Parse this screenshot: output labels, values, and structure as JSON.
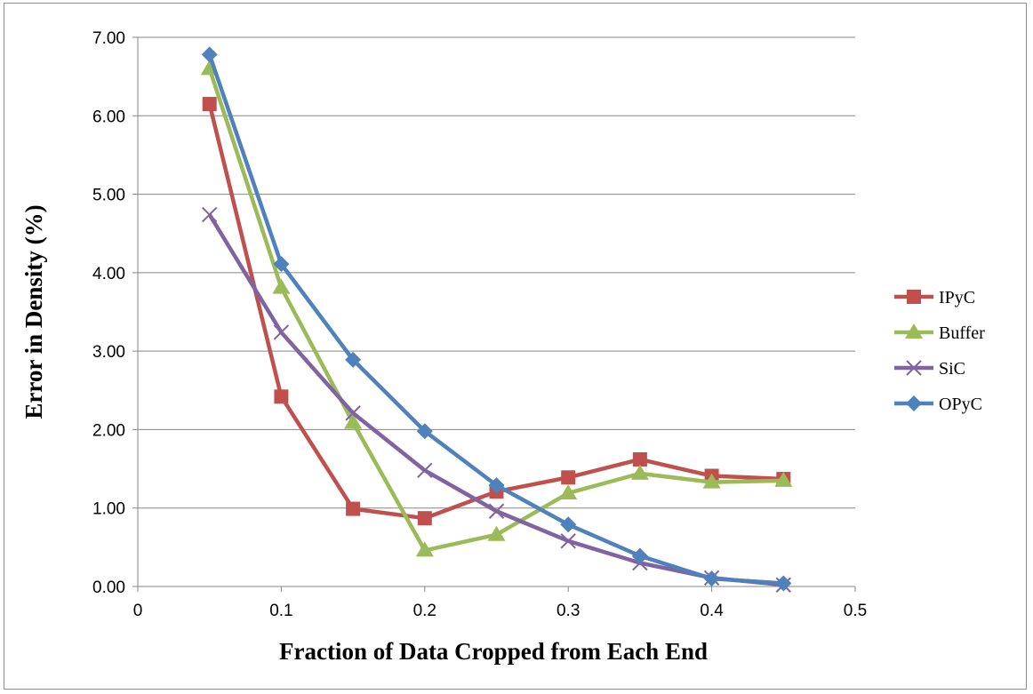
{
  "chart_data": {
    "type": "line",
    "title": "",
    "xlabel": "Fraction of Data Cropped from Each End",
    "ylabel": "Error in Density (%)",
    "xlim": [
      0,
      0.5
    ],
    "ylim": [
      0,
      7
    ],
    "x_ticks": [
      "0",
      "0.1",
      "0.2",
      "0.3",
      "0.4",
      "0.5"
    ],
    "y_ticks": [
      "0.00",
      "1.00",
      "2.00",
      "3.00",
      "4.00",
      "5.00",
      "6.00",
      "7.00"
    ],
    "grid": "horizontal",
    "legend_position": "right",
    "x": [
      0.05,
      0.1,
      0.15,
      0.2,
      0.25,
      0.3,
      0.35,
      0.4,
      0.45
    ],
    "series": [
      {
        "name": "IPyC",
        "color": "#C0504D",
        "marker": "square",
        "values": [
          6.15,
          2.42,
          0.99,
          0.87,
          1.21,
          1.39,
          1.62,
          1.41,
          1.37
        ]
      },
      {
        "name": "Buffer",
        "color": "#9BBB59",
        "marker": "triangle",
        "values": [
          6.6,
          3.81,
          2.09,
          0.46,
          0.66,
          1.19,
          1.44,
          1.33,
          1.35
        ]
      },
      {
        "name": "SiC",
        "color": "#8064A2",
        "marker": "x",
        "values": [
          4.74,
          3.24,
          2.21,
          1.48,
          0.96,
          0.58,
          0.3,
          0.11,
          0.02
        ]
      },
      {
        "name": "OPyC",
        "color": "#4F81BD",
        "marker": "diamond",
        "values": [
          6.78,
          4.11,
          2.89,
          1.98,
          1.29,
          0.79,
          0.39,
          0.1,
          0.04
        ]
      }
    ]
  }
}
